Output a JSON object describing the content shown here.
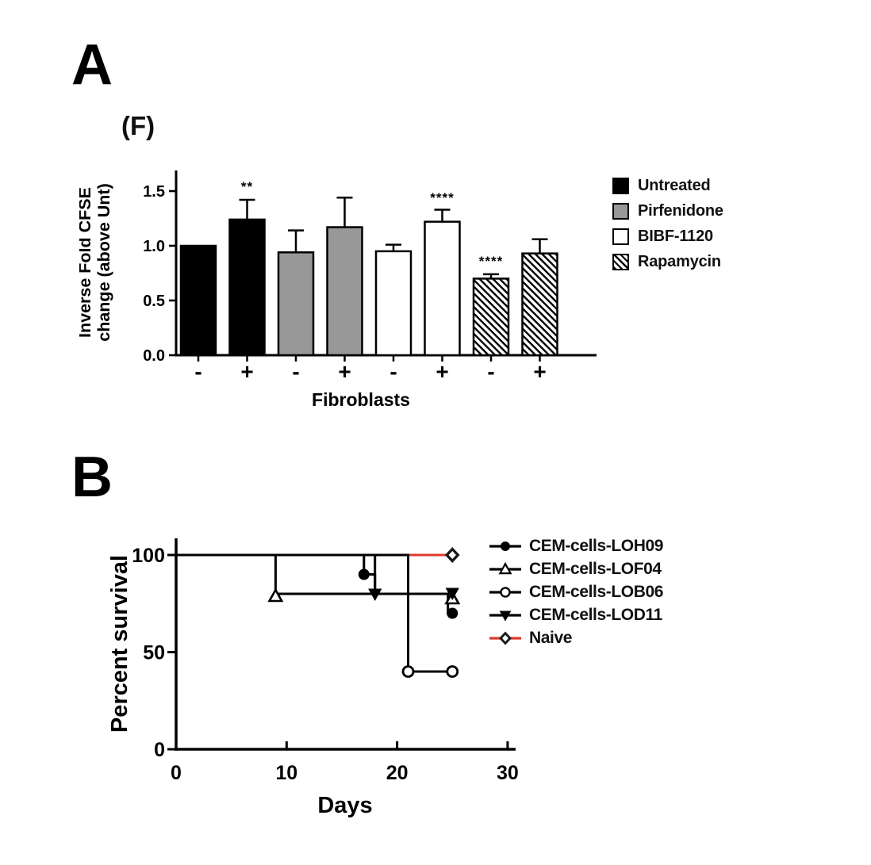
{
  "figure": {
    "panel_a_label": "A",
    "panel_b_label": "B"
  },
  "chart_data": [
    {
      "type": "bar",
      "title": "(F)",
      "ylabel_line1": "Inverse Fold CFSE",
      "ylabel_line2": "change (above Unt)",
      "xlabel": "Fibroblasts",
      "ylim": [
        0,
        1.7
      ],
      "yticks": [
        0.0,
        0.5,
        1.0,
        1.5
      ],
      "categories": [
        "-",
        "+",
        "-",
        "+",
        "-",
        "+",
        "-",
        "+"
      ],
      "series_groups": [
        "Untreated",
        "Untreated",
        "Pirfenidone",
        "Pirfenidone",
        "BIBF-1120",
        "BIBF-1120",
        "Rapamycin",
        "Rapamycin"
      ],
      "fills": [
        "black",
        "black",
        "gray",
        "gray",
        "white",
        "white",
        "hatch",
        "hatch"
      ],
      "values": [
        1.0,
        1.24,
        0.94,
        1.17,
        0.95,
        1.22,
        0.7,
        0.93
      ],
      "errors": [
        0,
        0.18,
        0.2,
        0.27,
        0.06,
        0.11,
        0.04,
        0.13
      ],
      "significance": [
        {
          "bar": 1,
          "text": "**",
          "y": 1.5
        },
        {
          "bar": 5,
          "text": "****",
          "y": 1.4
        },
        {
          "bar": 6,
          "text": "****",
          "y": 0.82
        }
      ],
      "legend": [
        {
          "label": "Untreated",
          "fill": "black"
        },
        {
          "label": "Pirfenidone",
          "fill": "gray"
        },
        {
          "label": "BIBF-1120",
          "fill": "white"
        },
        {
          "label": "Rapamycin",
          "fill": "hatch"
        }
      ],
      "colors": {
        "black": "#000000",
        "gray": "#989898",
        "white": "#ffffff"
      },
      "legend_position": "right"
    },
    {
      "type": "line",
      "subtype": "kaplan-meier-step",
      "xlabel": "Days",
      "ylabel": "Percent survival",
      "xlim": [
        0,
        30
      ],
      "ylim": [
        0,
        100
      ],
      "xticks": [
        0,
        10,
        20,
        30
      ],
      "yticks": [
        0,
        50,
        100
      ],
      "grid": false,
      "legend_position": "right",
      "series": [
        {
          "name": "CEM-cells-LOH09",
          "marker": "filled-circle",
          "color": "#000000",
          "steps": [
            [
              0,
              100
            ],
            [
              17,
              100
            ],
            [
              17,
              90
            ],
            [
              18,
              90
            ],
            [
              18,
              80
            ],
            [
              24.6,
              80
            ],
            [
              24.6,
              70
            ],
            [
              25,
              70
            ]
          ],
          "markers": [
            [
              17,
              90,
              0
            ],
            [
              25,
              70,
              0
            ]
          ]
        },
        {
          "name": "CEM-cells-LOF04",
          "marker": "open-triangle",
          "color": "#000000",
          "steps": [
            [
              0,
              100
            ],
            [
              9,
              100
            ],
            [
              9,
              80
            ],
            [
              25,
              80
            ]
          ],
          "markers": [
            [
              9,
              80,
              3
            ],
            [
              25,
              80,
              6
            ]
          ]
        },
        {
          "name": "CEM-cells-LOB06",
          "marker": "open-circle",
          "color": "#000000",
          "steps": [
            [
              0,
              100
            ],
            [
              21,
              100
            ],
            [
              21,
              40
            ],
            [
              25,
              40
            ]
          ],
          "markers": [
            [
              21,
              40,
              0
            ],
            [
              25,
              40,
              0
            ]
          ]
        },
        {
          "name": "CEM-cells-LOD11",
          "marker": "filled-inverted-triangle",
          "color": "#000000",
          "steps": [
            [
              0,
              100
            ],
            [
              18,
              100
            ],
            [
              18,
              80
            ],
            [
              25,
              80
            ]
          ],
          "markers": [
            [
              18,
              80,
              0
            ],
            [
              25,
              80,
              -1
            ]
          ]
        },
        {
          "name": "Naive",
          "marker": "open-diamond",
          "color": "#e03a2c",
          "marker_stroke": "#1a1a1a",
          "steps": [
            [
              0,
              100
            ],
            [
              25,
              100
            ]
          ],
          "markers": [
            [
              25,
              100,
              0
            ]
          ]
        }
      ]
    }
  ]
}
